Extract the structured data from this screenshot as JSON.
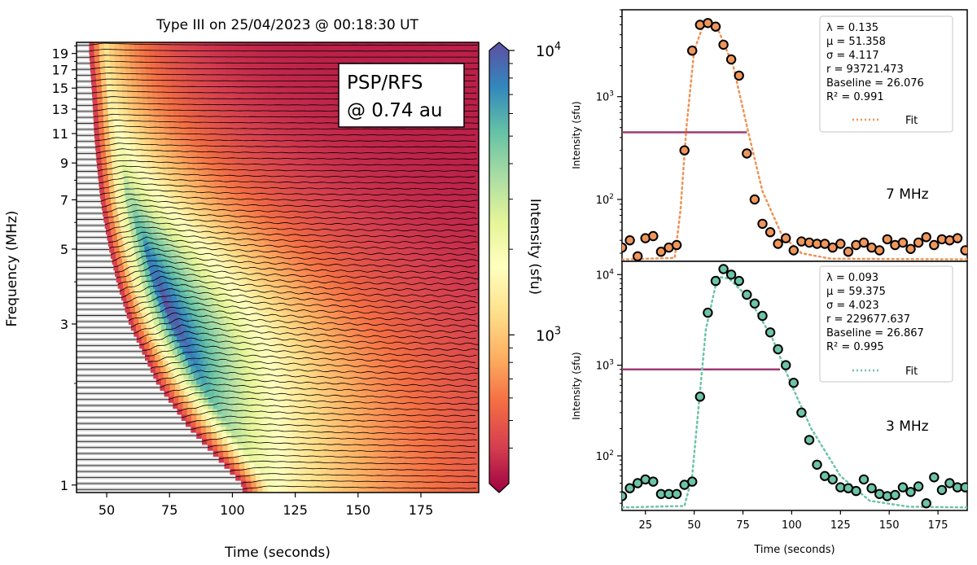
{
  "chart_data": [
    {
      "type": "heatmap",
      "title": "Type III on 25/04/2023 @ 00:18:30 UT",
      "xlabel": "Time (seconds)",
      "ylabel": "Frequency (MHz)",
      "xlim": [
        38,
        198
      ],
      "ylim": [
        0.95,
        20.5
      ],
      "yscale": "log",
      "xticks": [
        50,
        75,
        100,
        125,
        150,
        175
      ],
      "yticks": [
        1,
        3,
        5,
        7,
        9,
        11,
        13,
        15,
        17,
        19
      ],
      "annotation": [
        "PSP/RFS",
        "@ 0.74 au"
      ],
      "colorbar": {
        "label": "Intensity (sfu)",
        "scale": "log",
        "range": [
          300,
          10000
        ],
        "ticks": [
          {
            "base": "10",
            "exp": "3"
          },
          {
            "base": "10",
            "exp": "4"
          }
        ],
        "colormap": "Spectral_r",
        "extend": "both"
      },
      "onset_track": {
        "frequency_mhz": [
          1,
          1.5,
          2,
          3,
          4,
          5,
          6,
          7,
          9,
          11,
          13,
          15,
          17,
          19
        ],
        "onset_time_s": [
          104,
          82,
          70,
          59,
          54,
          51,
          49,
          47.5,
          46,
          45,
          44.5,
          44,
          43.5,
          43
        ],
        "peak_time_s": [
          115,
          98,
          88,
          77,
          70,
          66,
          62,
          59,
          56,
          54,
          52,
          51,
          50,
          49
        ]
      }
    },
    {
      "type": "scatter",
      "panel": "7 MHz",
      "xlabel": "",
      "ylabel": "Intensity (sfu)",
      "xlim": [
        13,
        190
      ],
      "ylim": [
        25,
        7000
      ],
      "yscale": "log",
      "xticks": [
        25,
        50,
        75,
        100,
        125,
        150,
        175
      ],
      "yticks": [
        {
          "base": "10",
          "exp": "2",
          "value": 100
        },
        {
          "base": "10",
          "exp": "3",
          "value": 1000
        }
      ],
      "frequency_label": "7 MHz",
      "fit_params": [
        "λ = 0.135",
        "μ = 51.358",
        "σ = 4.117",
        "r = 93721.473",
        "Baseline = 26.076",
        "R² = 0.991"
      ],
      "legend": "Fit",
      "half_max": {
        "value": 450,
        "x_start": 13,
        "x_end": 77
      },
      "colors": {
        "marker": "#f0965a",
        "fit": "#ef9254",
        "halfmax": "#9c3b73"
      },
      "x": [
        13,
        17,
        21,
        25,
        29,
        33,
        37,
        41,
        45,
        49,
        53,
        57,
        61,
        65,
        69,
        73,
        77,
        81,
        85,
        89,
        93,
        97,
        101,
        105,
        109,
        113,
        117,
        121,
        125,
        129,
        133,
        137,
        141,
        145,
        149,
        153,
        157,
        161,
        165,
        169,
        173,
        177,
        181,
        185,
        189
      ],
      "values": [
        34,
        40,
        28,
        42,
        44,
        31,
        34,
        36,
        300,
        2800,
        5000,
        5200,
        4800,
        3200,
        2300,
        1600,
        280,
        100,
        58,
        48,
        37,
        42,
        32,
        39,
        38,
        37,
        37,
        34,
        37,
        31,
        36,
        38,
        34,
        32,
        41,
        36,
        38,
        33,
        38,
        43,
        36,
        41,
        40,
        42,
        32
      ],
      "fit_y": [
        {
          "x": 13,
          "y": 26
        },
        {
          "x": 40,
          "y": 27
        },
        {
          "x": 43,
          "y": 80
        },
        {
          "x": 46,
          "y": 500
        },
        {
          "x": 50,
          "y": 2800
        },
        {
          "x": 55,
          "y": 5200
        },
        {
          "x": 62,
          "y": 4600
        },
        {
          "x": 70,
          "y": 2000
        },
        {
          "x": 78,
          "y": 430
        },
        {
          "x": 85,
          "y": 120
        },
        {
          "x": 95,
          "y": 45
        },
        {
          "x": 105,
          "y": 30
        },
        {
          "x": 120,
          "y": 26.5
        },
        {
          "x": 190,
          "y": 26.1
        }
      ]
    },
    {
      "type": "scatter",
      "panel": "3 MHz",
      "xlabel": "Time (seconds)",
      "ylabel": "Intensity (sfu)",
      "xlim": [
        13,
        190
      ],
      "ylim": [
        25,
        14000
      ],
      "yscale": "log",
      "xticks": [
        25,
        50,
        75,
        100,
        125,
        150,
        175
      ],
      "yticks": [
        {
          "base": "10",
          "exp": "2",
          "value": 100
        },
        {
          "base": "10",
          "exp": "3",
          "value": 1000
        },
        {
          "base": "10",
          "exp": "4",
          "value": 10000
        }
      ],
      "frequency_label": "3 MHz",
      "fit_params": [
        "λ = 0.093",
        "μ = 59.375",
        "σ = 4.023",
        "r = 229677.637",
        "Baseline = 26.867",
        "R² = 0.995"
      ],
      "legend": "Fit",
      "half_max": {
        "value": 900,
        "x_start": 13,
        "x_end": 94
      },
      "colors": {
        "marker": "#6cc4a6",
        "fit": "#6cc4a6",
        "halfmax": "#9c3b73"
      },
      "x": [
        13,
        17,
        21,
        25,
        29,
        33,
        37,
        41,
        45,
        49,
        53,
        57,
        61,
        65,
        69,
        73,
        77,
        81,
        85,
        89,
        93,
        97,
        101,
        105,
        109,
        113,
        117,
        121,
        125,
        129,
        133,
        137,
        141,
        145,
        149,
        153,
        157,
        161,
        165,
        169,
        173,
        177,
        181,
        185,
        189
      ],
      "values": [
        36,
        44,
        50,
        55,
        52,
        38,
        38,
        38,
        48,
        52,
        450,
        3800,
        8500,
        11500,
        10000,
        8500,
        6000,
        4800,
        3500,
        2300,
        1500,
        1000,
        640,
        300,
        150,
        80,
        60,
        55,
        45,
        44,
        41,
        55,
        44,
        38,
        36,
        37,
        45,
        40,
        46,
        30,
        58,
        42,
        50,
        45,
        45
      ],
      "fit_y": [
        {
          "x": 13,
          "y": 27
        },
        {
          "x": 45,
          "y": 28
        },
        {
          "x": 49,
          "y": 60
        },
        {
          "x": 52,
          "y": 300
        },
        {
          "x": 56,
          "y": 2500
        },
        {
          "x": 62,
          "y": 9500
        },
        {
          "x": 68,
          "y": 9000
        },
        {
          "x": 78,
          "y": 5500
        },
        {
          "x": 90,
          "y": 2000
        },
        {
          "x": 100,
          "y": 600
        },
        {
          "x": 110,
          "y": 200
        },
        {
          "x": 125,
          "y": 60
        },
        {
          "x": 140,
          "y": 32
        },
        {
          "x": 160,
          "y": 27.5
        },
        {
          "x": 190,
          "y": 27
        }
      ]
    }
  ]
}
